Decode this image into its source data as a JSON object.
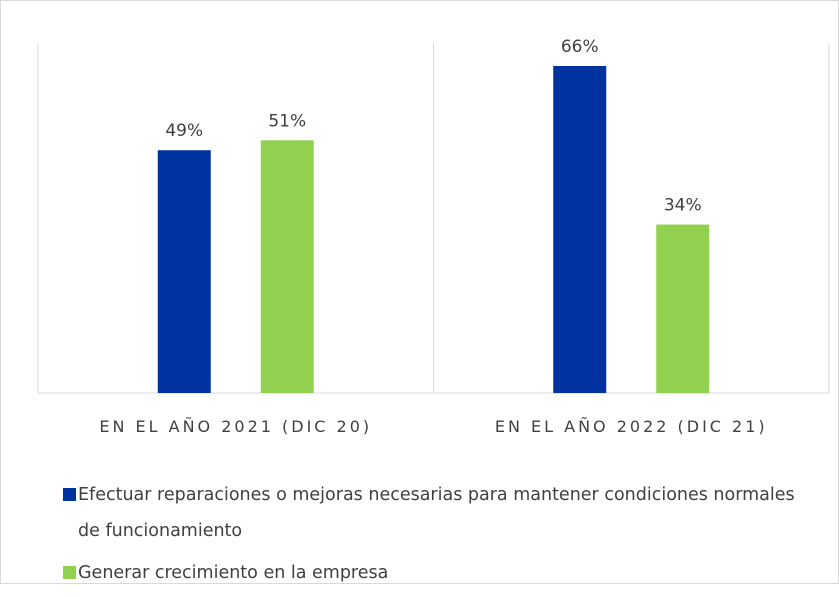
{
  "chart_data": {
    "type": "bar",
    "categories": [
      "EN EL AÑO 2021 (DIC 20)",
      "EN EL AÑO 2022 (DIC 21)"
    ],
    "series": [
      {
        "name": "Efectuar reparaciones o mejoras necesarias para mantener condiciones normales de funcionamiento",
        "color": "#0033a0",
        "values": [
          49,
          66
        ],
        "value_labels": [
          "49%",
          "66%"
        ]
      },
      {
        "name": "Generar crecimiento en la empresa",
        "color": "#92d050",
        "values": [
          51,
          34
        ],
        "value_labels": [
          "51%",
          "34%"
        ]
      }
    ]
  }
}
